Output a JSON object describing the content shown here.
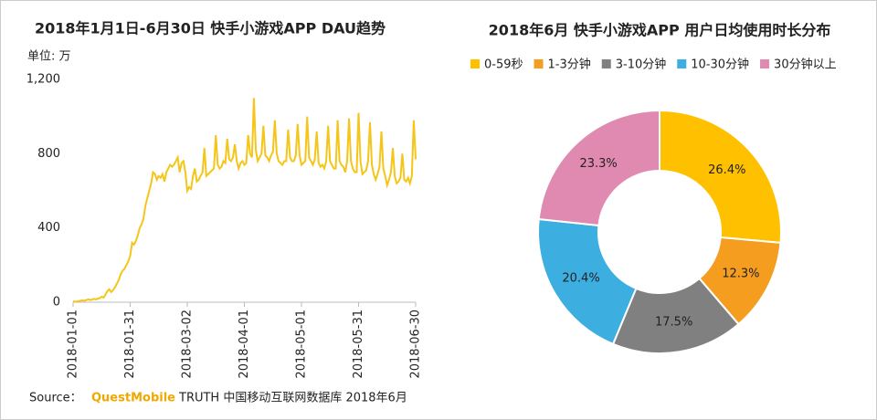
{
  "chart_data": [
    {
      "type": "line",
      "title": "2018年1月1日-6月30日 快手小游戏APP DAU趋势",
      "y_label": "单位: 万",
      "categories": [
        "2018-01-01",
        null,
        null,
        null,
        null,
        null,
        null,
        null,
        null,
        null,
        null,
        null,
        null,
        null,
        null,
        null,
        null,
        null,
        null,
        null,
        null,
        null,
        null,
        null,
        null,
        null,
        null,
        null,
        null,
        null,
        "2018-01-31",
        null,
        null,
        null,
        null,
        null,
        null,
        null,
        null,
        null,
        null,
        null,
        null,
        null,
        null,
        null,
        null,
        null,
        null,
        null,
        null,
        null,
        null,
        null,
        null,
        null,
        null,
        null,
        null,
        null,
        "2018-03-02",
        null,
        null,
        null,
        null,
        null,
        null,
        null,
        null,
        null,
        null,
        null,
        null,
        null,
        null,
        null,
        null,
        null,
        null,
        null,
        null,
        null,
        null,
        null,
        null,
        null,
        null,
        null,
        null,
        null,
        "2018-04-01",
        null,
        null,
        null,
        null,
        null,
        null,
        null,
        null,
        null,
        null,
        null,
        null,
        null,
        null,
        null,
        null,
        null,
        null,
        null,
        null,
        null,
        null,
        null,
        null,
        null,
        null,
        null,
        null,
        null,
        "2018-05-01",
        null,
        null,
        null,
        null,
        null,
        null,
        null,
        null,
        null,
        null,
        null,
        null,
        null,
        null,
        null,
        null,
        null,
        null,
        null,
        null,
        null,
        null,
        null,
        null,
        null,
        null,
        null,
        null,
        null,
        "2018-05-31",
        null,
        null,
        null,
        null,
        null,
        null,
        null,
        null,
        null,
        null,
        null,
        null,
        null,
        null,
        null,
        null,
        null,
        null,
        null,
        null,
        null,
        null,
        null,
        null,
        null,
        null,
        null,
        null,
        null,
        "2018-06-30"
      ],
      "values": [
        5,
        3,
        4,
        6,
        8,
        10,
        8,
        12,
        15,
        12,
        14,
        18,
        15,
        20,
        22,
        30,
        25,
        40,
        60,
        70,
        55,
        65,
        80,
        100,
        120,
        150,
        170,
        180,
        200,
        220,
        250,
        320,
        310,
        330,
        360,
        400,
        420,
        450,
        520,
        560,
        600,
        640,
        700,
        690,
        660,
        680,
        670,
        690,
        650,
        700,
        720,
        740,
        730,
        740,
        760,
        780,
        700,
        750,
        760,
        700,
        600,
        620,
        610,
        680,
        720,
        650,
        660,
        680,
        700,
        830,
        680,
        690,
        700,
        710,
        720,
        900,
        740,
        720,
        730,
        760,
        750,
        880,
        770,
        760,
        780,
        850,
        760,
        720,
        750,
        760,
        740,
        750,
        900,
        800,
        780,
        1100,
        820,
        760,
        780,
        800,
        950,
        790,
        780,
        760,
        790,
        810,
        980,
        800,
        760,
        750,
        740,
        760,
        760,
        930,
        780,
        760,
        760,
        790,
        960,
        790,
        740,
        750,
        760,
        1000,
        780,
        760,
        740,
        770,
        920,
        750,
        730,
        740,
        720,
        760,
        950,
        760,
        740,
        720,
        720,
        980,
        760,
        740,
        730,
        700,
        760,
        990,
        760,
        720,
        700,
        700,
        1020,
        760,
        690,
        700,
        710,
        760,
        970,
        740,
        690,
        660,
        690,
        730,
        920,
        720,
        680,
        630,
        660,
        700,
        830,
        680,
        640,
        650,
        670,
        800,
        660,
        650,
        670,
        640,
        680,
        980,
        770
      ],
      "color": "#f5c518",
      "ylim": [
        0,
        1200
      ],
      "yticks": [
        0,
        400,
        800,
        {
          "value": 1200,
          "label": "1,200"
        }
      ],
      "grid": false
    },
    {
      "type": "donut",
      "title": "2018年6月 快手小游戏APP 用户日均使用时长分布",
      "categories": [
        "0-59秒",
        "1-3分钟",
        "3-10分钟",
        "10-30分钟",
        "30分钟以上"
      ],
      "values": [
        26.4,
        12.3,
        17.5,
        20.4,
        23.3
      ],
      "value_labels": [
        "26.4%",
        "12.3%",
        "17.5%",
        "20.4%",
        "23.3%"
      ],
      "colors": [
        "#ffc000",
        "#f59d1f",
        "#808080",
        "#3daee0",
        "#e089b1"
      ],
      "legend": "top"
    }
  ],
  "source": {
    "label": "Source：",
    "brand": "QuestMobile",
    "text": "TRUTH 中国移动互联网数据库 2018年6月"
  }
}
